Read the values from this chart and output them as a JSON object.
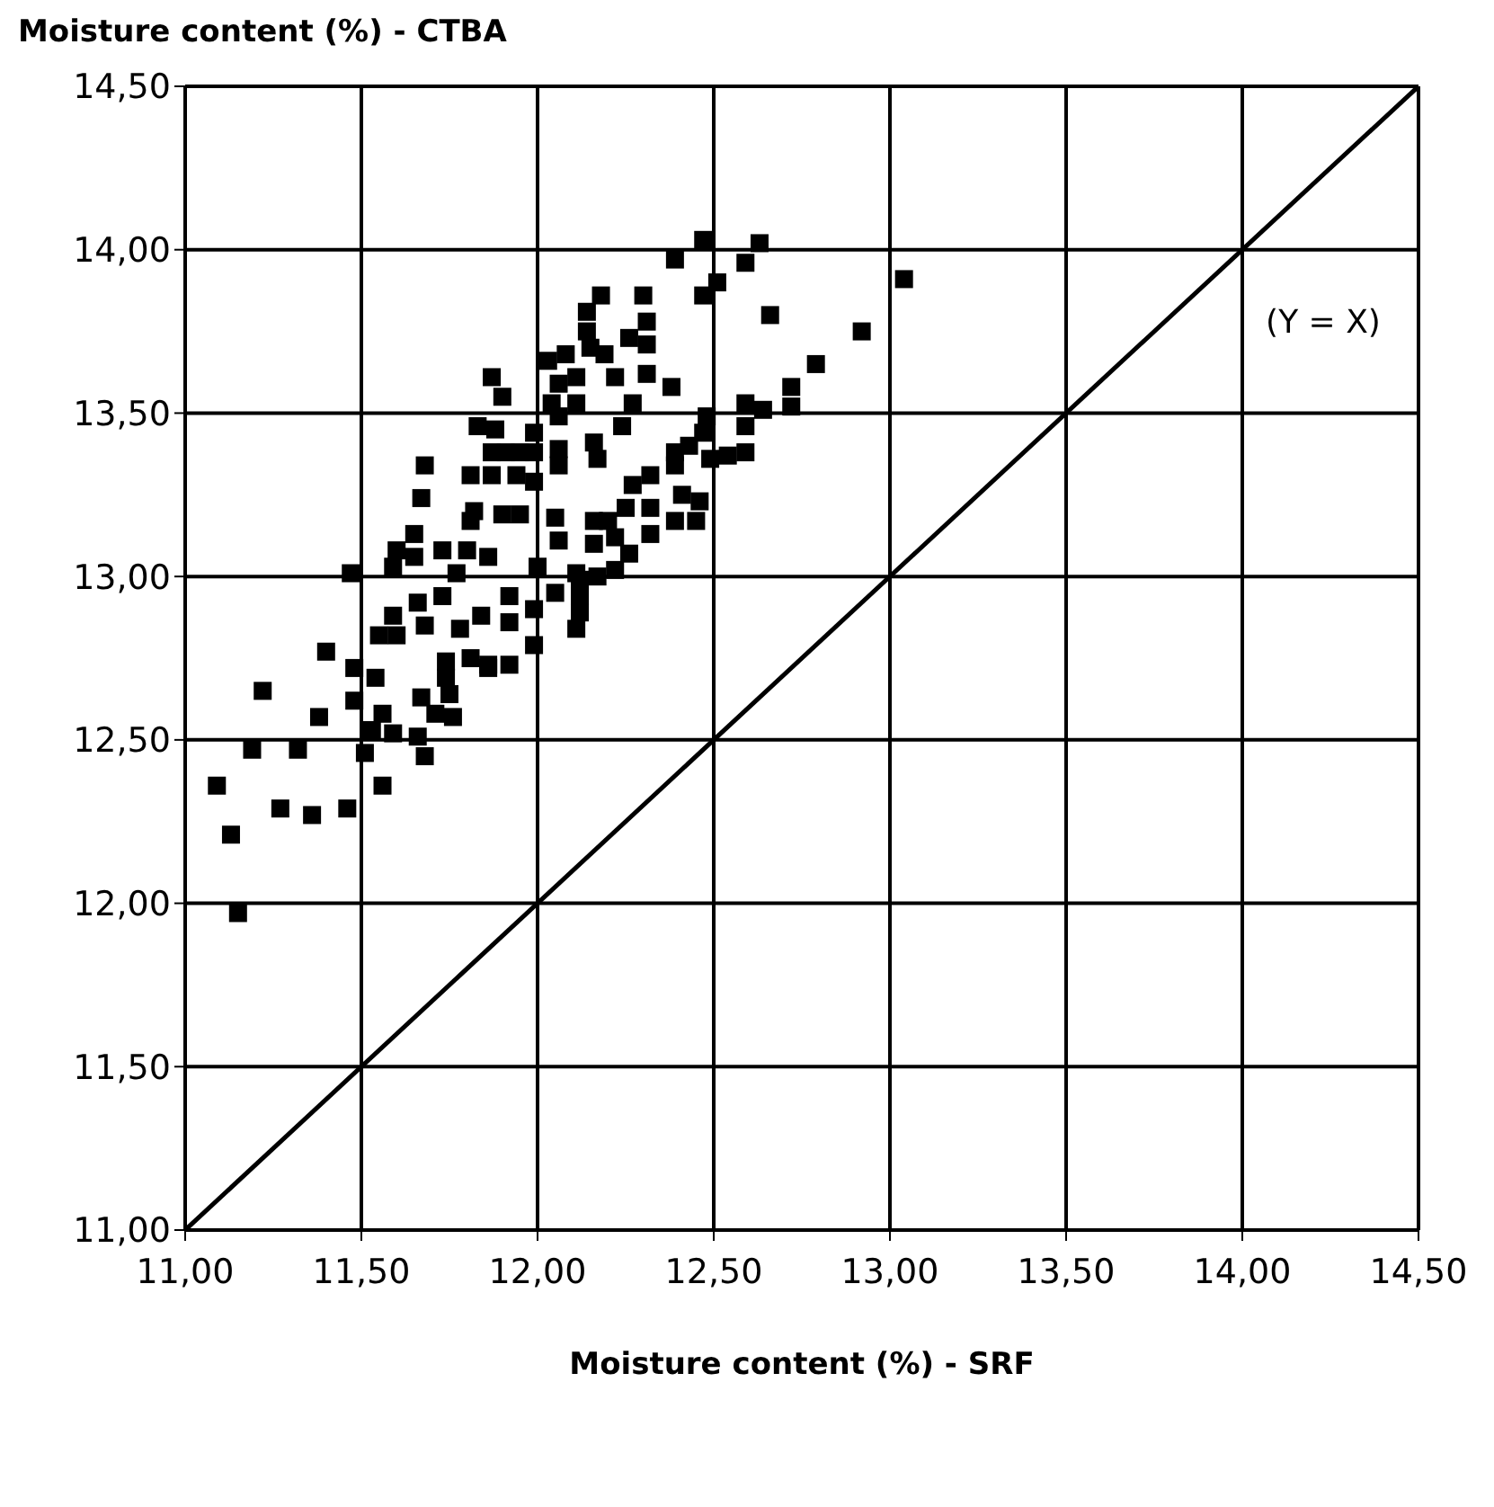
{
  "chart_data": {
    "type": "scatter",
    "xlabel": "Moisture content (%) - SRF",
    "ylabel": "Moisture content (%) - CTBA",
    "xlim": [
      11,
      14.5
    ],
    "ylim": [
      11,
      14.5
    ],
    "xticks": [
      {
        "value": 11,
        "label": "11,00"
      },
      {
        "value": 11.5,
        "label": "11,50"
      },
      {
        "value": 12,
        "label": "12,00"
      },
      {
        "value": 12.5,
        "label": "12,50"
      },
      {
        "value": 13,
        "label": "13,00"
      },
      {
        "value": 13.5,
        "label": "13,50"
      },
      {
        "value": 14,
        "label": "14,00"
      },
      {
        "value": 14.5,
        "label": "14,50"
      }
    ],
    "yticks": [
      {
        "value": 11,
        "label": "11,00"
      },
      {
        "value": 11.5,
        "label": "11,50"
      },
      {
        "value": 12,
        "label": "12,00"
      },
      {
        "value": 12.5,
        "label": "12,50"
      },
      {
        "value": 13,
        "label": "13,00"
      },
      {
        "value": 13.5,
        "label": "13,50"
      },
      {
        "value": 14,
        "label": "14,00"
      },
      {
        "value": 14.5,
        "label": "14,50"
      }
    ],
    "grid": true,
    "marker": "square",
    "annotations": [
      "(Y = X)"
    ],
    "series": [
      {
        "color": "#000000",
        "x": [
          11.09,
          11.13,
          11.15,
          11.19,
          11.22,
          11.27,
          11.32,
          11.36,
          11.38,
          11.4,
          11.46,
          11.48,
          11.48,
          11.51,
          11.54,
          11.53,
          11.56,
          11.55,
          11.59,
          11.56,
          11.59,
          11.66,
          11.68,
          11.67,
          11.71,
          11.74,
          11.74,
          11.68,
          11.66,
          11.73,
          11.6,
          11.76,
          11.87,
          11.9,
          12.03,
          12.08,
          12.14,
          12.14,
          12.06,
          12.11,
          12.04,
          12.11,
          11.83,
          11.88,
          11.99,
          12.06,
          12.16,
          11.87,
          11.91,
          11.95,
          11.99,
          12.06,
          12.17,
          11.68,
          11.81,
          11.87,
          11.94,
          11.99,
          12.06,
          11.67,
          11.82,
          11.9,
          11.95,
          12.05,
          11.81,
          12.16,
          11.65,
          12.06,
          11.6,
          11.73,
          11.8,
          11.86,
          12.16,
          11.59,
          11.65,
          11.77,
          12.0,
          12.11,
          12.17,
          11.47,
          11.92,
          12.05,
          12.12,
          12.12,
          11.78,
          11.84,
          11.92,
          11.99,
          11.99,
          11.81,
          11.86,
          11.92,
          11.86,
          12.11,
          11.75,
          12.12,
          12.47,
          12.63,
          12.39,
          12.59,
          12.51,
          12.47,
          12.18,
          12.3,
          12.66,
          12.31,
          12.92,
          12.26,
          12.31,
          12.15,
          12.19,
          12.79,
          12.31,
          12.22,
          12.38,
          12.72,
          12.72,
          12.59,
          12.64,
          12.27,
          12.48,
          12.24,
          12.59,
          12.47,
          12.39,
          12.49,
          12.43,
          12.59,
          12.39,
          12.32,
          12.54,
          12.27,
          12.41,
          12.46,
          12.25,
          12.32,
          12.2,
          12.39,
          12.45,
          12.32,
          12.22,
          12.26,
          12.22,
          13.04
        ],
        "values": [
          12.36,
          12.21,
          11.97,
          12.47,
          12.65,
          12.29,
          12.47,
          12.27,
          12.57,
          12.77,
          12.29,
          12.72,
          12.62,
          12.46,
          12.69,
          12.53,
          12.36,
          12.82,
          12.88,
          12.58,
          12.52,
          12.51,
          12.45,
          12.63,
          12.58,
          12.74,
          12.69,
          12.85,
          12.92,
          12.94,
          12.82,
          12.57,
          13.61,
          13.55,
          13.66,
          13.68,
          13.81,
          13.75,
          13.59,
          13.61,
          13.53,
          13.53,
          13.46,
          13.45,
          13.44,
          13.49,
          13.41,
          13.38,
          13.38,
          13.38,
          13.38,
          13.39,
          13.36,
          13.34,
          13.31,
          13.31,
          13.31,
          13.29,
          13.34,
          13.24,
          13.2,
          13.19,
          13.19,
          13.18,
          13.17,
          13.17,
          13.13,
          13.11,
          13.08,
          13.08,
          13.08,
          13.06,
          13.1,
          13.03,
          13.06,
          13.01,
          13.03,
          13.01,
          13.0,
          13.01,
          12.94,
          12.95,
          12.94,
          12.89,
          12.84,
          12.88,
          12.86,
          12.9,
          12.79,
          12.75,
          12.73,
          12.73,
          12.72,
          12.84,
          12.64,
          12.99,
          14.03,
          14.02,
          13.97,
          13.96,
          13.9,
          13.86,
          13.86,
          13.86,
          13.8,
          13.78,
          13.75,
          13.73,
          13.71,
          13.7,
          13.68,
          13.65,
          13.62,
          13.61,
          13.58,
          13.58,
          13.52,
          13.53,
          13.51,
          13.53,
          13.49,
          13.46,
          13.46,
          13.44,
          13.38,
          13.36,
          13.4,
          13.38,
          13.34,
          13.31,
          13.37,
          13.28,
          13.25,
          13.23,
          13.21,
          13.21,
          13.17,
          13.17,
          13.17,
          13.13,
          13.12,
          13.07,
          13.02,
          13.91
        ]
      },
      {
        "type": "line",
        "color": "#000000",
        "marker": "none",
        "x": [
          11,
          14.5
        ],
        "values": [
          11,
          14.5
        ]
      }
    ]
  }
}
